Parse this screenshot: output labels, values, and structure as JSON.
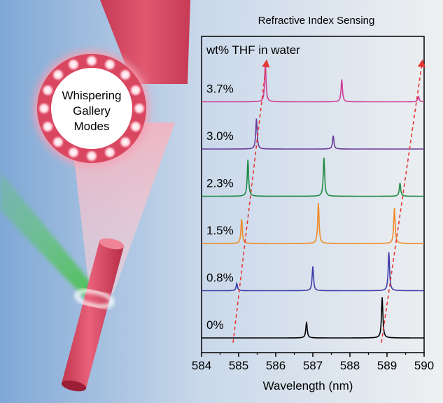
{
  "illustration": {
    "ring_label_lines": [
      "Whispering",
      "Gallery",
      "Modes"
    ]
  },
  "chart_data": {
    "type": "line",
    "title": "Refractive Index Sensing",
    "legend_title": "wt% THF in water",
    "xlabel": "Wavelength (nm)",
    "ylabel": "",
    "xlim": [
      584,
      590
    ],
    "xticks": [
      "584",
      "585",
      "586",
      "587",
      "588",
      "589",
      "590"
    ],
    "grid": false,
    "series": [
      {
        "name": "0%",
        "color": "#000000",
        "peaks": [
          {
            "x": 586.83,
            "h": 0.4
          },
          {
            "x": 588.87,
            "h": 1.0
          }
        ]
      },
      {
        "name": "0.8%",
        "color": "#3b3ba6",
        "peaks": [
          {
            "x": 584.95,
            "h": 0.18
          },
          {
            "x": 587.0,
            "h": 0.6
          },
          {
            "x": 589.05,
            "h": 0.95
          }
        ]
      },
      {
        "name": "1.5%",
        "color": "#f08a24",
        "peaks": [
          {
            "x": 585.08,
            "h": 0.6
          },
          {
            "x": 587.15,
            "h": 1.0
          },
          {
            "x": 589.2,
            "h": 0.88
          }
        ]
      },
      {
        "name": "2.3%",
        "color": "#1f8a44",
        "peaks": [
          {
            "x": 585.25,
            "h": 0.9
          },
          {
            "x": 587.3,
            "h": 0.95
          },
          {
            "x": 589.35,
            "h": 0.33
          }
        ]
      },
      {
        "name": "3.0%",
        "color": "#6a3a9a",
        "peaks": [
          {
            "x": 585.48,
            "h": 0.75
          },
          {
            "x": 587.55,
            "h": 0.33
          }
        ]
      },
      {
        "name": "3.7%",
        "color": "#cf3c97",
        "peaks": [
          {
            "x": 585.72,
            "h": 0.95
          },
          {
            "x": 587.78,
            "h": 0.55
          },
          {
            "x": 589.85,
            "h": 0.13
          }
        ]
      }
    ],
    "trend_arrows": [
      {
        "from": [
          584.85,
          -0.1
        ],
        "to": [
          585.75,
          5.85
        ]
      },
      {
        "from": [
          588.85,
          -0.1
        ],
        "to": [
          589.95,
          5.85
        ]
      }
    ]
  }
}
